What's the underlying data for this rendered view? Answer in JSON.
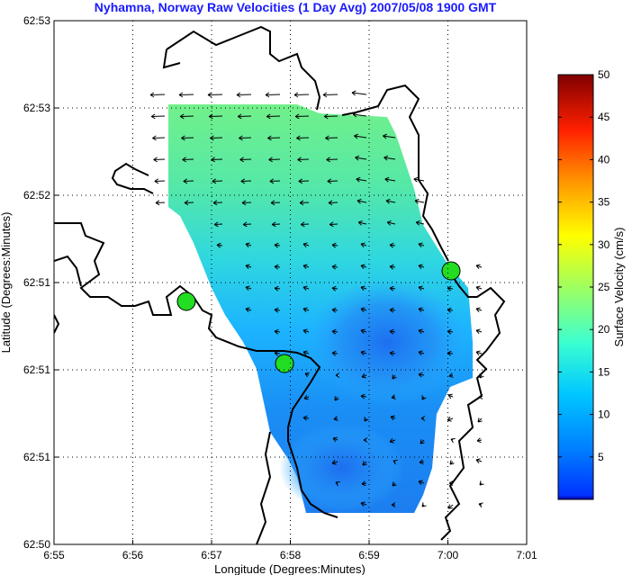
{
  "chart_data": {
    "type": "heatmap",
    "title": "Nyhamna, Norway Raw Velocities (1 Day Avg) 2007/05/08 1900 GMT",
    "xlabel": "Longitude (Degrees:Minutes)",
    "ylabel": "Latitude (Degrees:Minutes)",
    "x_ticks": [
      "6:55",
      "6:56",
      "6:57",
      "6:58",
      "6:59",
      "7:00",
      "7:01"
    ],
    "y_ticks": [
      "62:53",
      "62:53",
      "62:52",
      "62:51",
      "62:51",
      "62:51",
      "62:50"
    ],
    "grid": true,
    "colorbar": {
      "label": "Surface Velocity (cm/s)",
      "ticks": [
        5,
        10,
        15,
        20,
        25,
        30,
        35,
        40,
        45,
        50
      ],
      "range": [
        0,
        50
      ],
      "colormap": "jet"
    },
    "site_markers": [
      {
        "lon": 6.95,
        "lat": 62.8476
      },
      {
        "lon": 6.971,
        "lat": 62.8438
      },
      {
        "lon": 7.0,
        "lat": 62.8496
      }
    ],
    "marker_color": "#22dd22",
    "coastline_color": "#000000",
    "vector_color": "#000000"
  }
}
